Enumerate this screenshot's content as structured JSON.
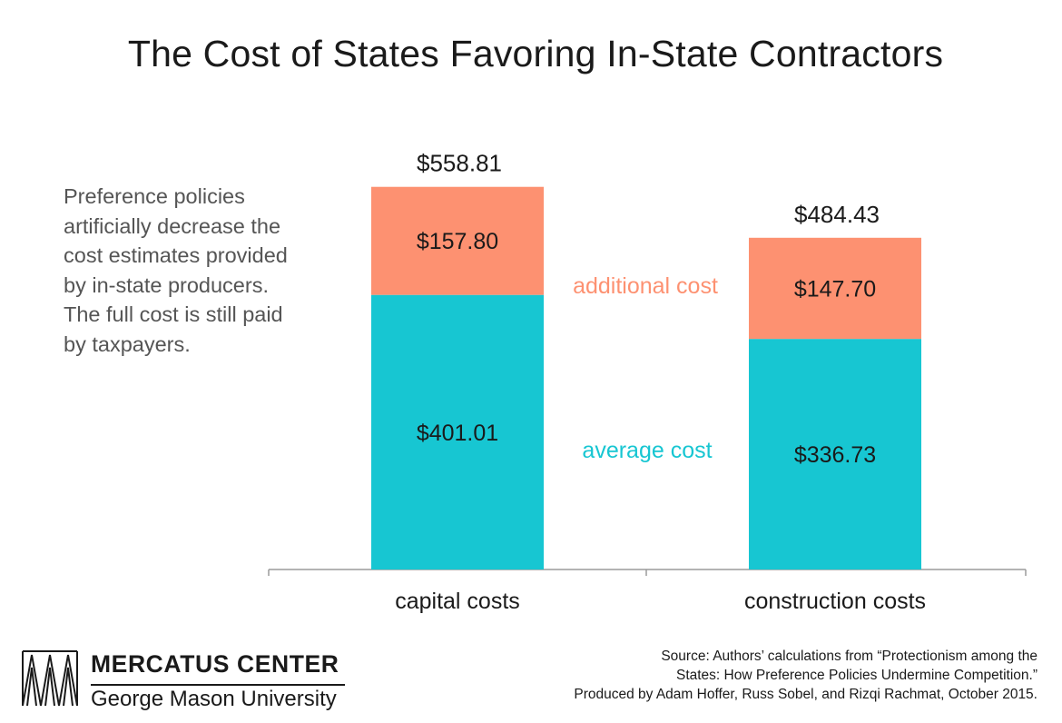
{
  "title": "The Cost of States Favoring In-State Contractors",
  "description": "Preference policies artificially decrease the cost estimates provided by in-state producers. The full cost is still paid by taxpayers.",
  "colors": {
    "average": "#17c6d2",
    "additional": "#fd9171",
    "axis": "#9a9a9a",
    "text": "#1a1a1a"
  },
  "chart_data": {
    "type": "bar",
    "stacked": true,
    "categories": [
      "capital costs",
      "construction costs"
    ],
    "series": [
      {
        "name": "average cost",
        "values": [
          401.01,
          336.73
        ],
        "labels": [
          "$401.01",
          "$336.73"
        ]
      },
      {
        "name": "additional cost",
        "values": [
          157.8,
          147.7
        ],
        "labels": [
          "$157.80",
          "$147.70"
        ]
      }
    ],
    "totals": [
      558.81,
      484.43
    ],
    "total_labels": [
      "$558.81",
      "$484.43"
    ],
    "ylim": [
      0,
      600
    ],
    "grid": false,
    "legend": "inline between bars"
  },
  "source": {
    "lines": [
      "Source: Authors’ calculations from “Protectionism among the",
      "States: How Preference Policies Undermine Competition.”",
      "Produced by Adam Hoffer, Russ Sobel, and Rizqi Rachmat, October 2015."
    ]
  },
  "logo": {
    "name": "MERCATUS CENTER",
    "subtitle": "George Mason University",
    "icon": "mercatus-logo-icon"
  }
}
